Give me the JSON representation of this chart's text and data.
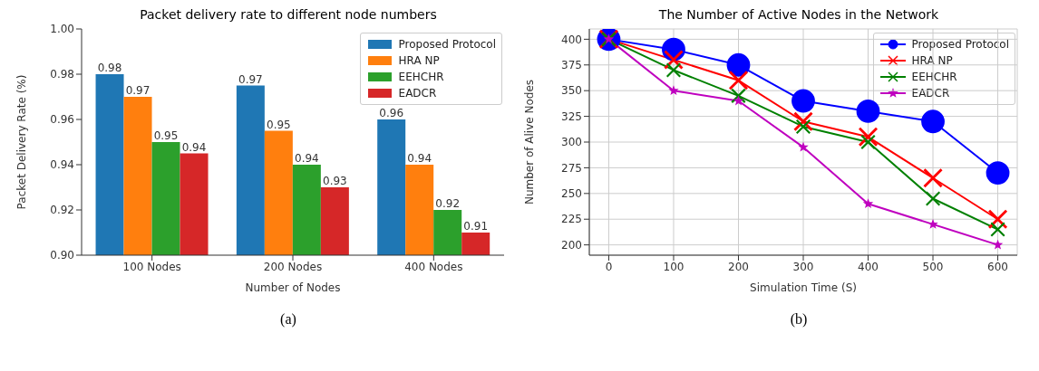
{
  "chart_data": [
    {
      "type": "bar",
      "title": "Packet delivery rate to different node numbers",
      "xlabel": "Number of Nodes",
      "ylabel": "Packet Delivery Rate (%)",
      "categories": [
        "100 Nodes",
        "200 Nodes",
        "400 Nodes"
      ],
      "series": [
        {
          "name": "Proposed Protocol",
          "color": "#1f77b4",
          "values": [
            0.98,
            0.975,
            0.96
          ],
          "value_labels": [
            "0.98",
            "0.97",
            "0.96"
          ]
        },
        {
          "name": "HRA NP",
          "color": "#ff7f0e",
          "values": [
            0.97,
            0.955,
            0.94
          ],
          "value_labels": [
            "0.97",
            "0.95",
            "0.94"
          ]
        },
        {
          "name": "EEHCHR",
          "color": "#2ca02c",
          "values": [
            0.95,
            0.94,
            0.92
          ],
          "value_labels": [
            "0.95",
            "0.94",
            "0.92"
          ]
        },
        {
          "name": "EADCR",
          "color": "#d62728",
          "values": [
            0.945,
            0.93,
            0.91
          ],
          "value_labels": [
            "0.94",
            "0.93",
            "0.91"
          ]
        }
      ],
      "ylim": [
        0.9,
        1.0
      ],
      "yticks": [
        {
          "value": 0.9,
          "label": "0.90"
        },
        {
          "value": 0.92,
          "label": "0.92"
        },
        {
          "value": 0.94,
          "label": "0.94"
        },
        {
          "value": 0.96,
          "label": "0.96"
        },
        {
          "value": 0.98,
          "label": "0.98"
        },
        {
          "value": 1.0,
          "label": "1.00"
        }
      ],
      "grid": false,
      "legend": "top right",
      "annotations": [
        "(a)"
      ]
    },
    {
      "type": "line",
      "title": "The Number of Active Nodes in the Network",
      "xlabel": "Simulation Time (S)",
      "ylabel": "Number of Alive Nodes",
      "x": [
        0,
        100,
        200,
        300,
        400,
        500,
        600
      ],
      "series": [
        {
          "name": "Proposed Protocol",
          "color": "#0000ff",
          "marker": "circle",
          "values": [
            400,
            390,
            375,
            340,
            330,
            320,
            270
          ]
        },
        {
          "name": "HRA NP",
          "color": "#ff0000",
          "marker": "cross",
          "values": [
            400,
            380,
            360,
            320,
            305,
            265,
            225
          ]
        },
        {
          "name": "EEHCHR",
          "color": "#008000",
          "marker": "cross",
          "values": [
            400,
            370,
            345,
            315,
            300,
            245,
            215
          ]
        },
        {
          "name": "EADCR",
          "color": "#bf00bf",
          "marker": "star",
          "values": [
            400,
            350,
            340,
            295,
            240,
            220,
            200
          ]
        }
      ],
      "xlim": [
        -30,
        630
      ],
      "xticks": [
        0,
        100,
        200,
        300,
        400,
        500,
        600
      ],
      "ylim": [
        190,
        410
      ],
      "yticks": [
        200,
        225,
        250,
        275,
        300,
        325,
        350,
        375,
        400
      ],
      "grid": true,
      "legend": "top right",
      "annotations": [
        "(b)"
      ]
    }
  ]
}
